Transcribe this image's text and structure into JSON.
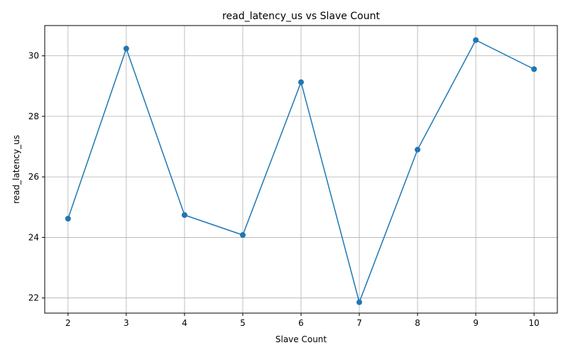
{
  "chart_data": {
    "type": "line",
    "title": "read_latency_us vs Slave Count",
    "xlabel": "Slave Count",
    "ylabel": "read_latency_us",
    "x": [
      2,
      3,
      4,
      5,
      6,
      7,
      8,
      9,
      10
    ],
    "series": [
      {
        "values": [
          24.62,
          30.24,
          24.74,
          24.08,
          29.13,
          21.86,
          26.9,
          30.52,
          29.56
        ],
        "color": "#1f77b4",
        "marker": "circle"
      }
    ],
    "xlim": [
      1.6,
      10.4
    ],
    "ylim": [
      21.5,
      31.0
    ],
    "xticks": [
      "2",
      "3",
      "4",
      "5",
      "6",
      "7",
      "8",
      "9",
      "10"
    ],
    "yticks": [
      "22",
      "24",
      "26",
      "28",
      "30"
    ],
    "grid": true,
    "legend": "none"
  }
}
